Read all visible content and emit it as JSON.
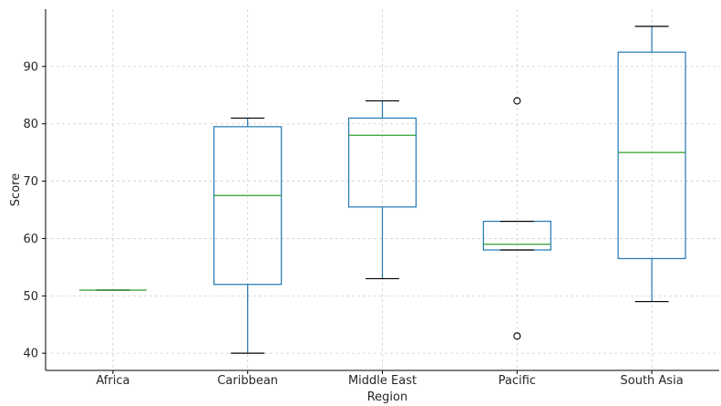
{
  "chart_data": {
    "type": "box",
    "xlabel": "Region",
    "ylabel": "Score",
    "ylim": [
      37,
      100
    ],
    "yticks": [
      40,
      50,
      60,
      70,
      80,
      90
    ],
    "grid": true,
    "colors": {
      "box": "#1f77b4",
      "median": "#2ca02c",
      "whisker": "#1f77b4",
      "cap": "#000000",
      "flier": "#000000"
    },
    "categories": [
      "Africa",
      "Caribbean",
      "Middle East",
      "Pacific",
      "South Asia"
    ],
    "boxes": [
      {
        "category": "Africa",
        "whislo": 51,
        "q1": 51,
        "med": 51,
        "q3": 51,
        "whishi": 51,
        "fliers": []
      },
      {
        "category": "Caribbean",
        "whislo": 40,
        "q1": 52,
        "med": 67.5,
        "q3": 79.5,
        "whishi": 81,
        "fliers": []
      },
      {
        "category": "Middle East",
        "whislo": 53,
        "q1": 65.5,
        "med": 78,
        "q3": 81,
        "whishi": 84,
        "fliers": []
      },
      {
        "category": "Pacific",
        "whislo": 58,
        "q1": 58,
        "med": 59,
        "q3": 63,
        "whishi": 63,
        "fliers": [
          84,
          43
        ]
      },
      {
        "category": "South Asia",
        "whislo": 49,
        "q1": 56.5,
        "med": 75,
        "q3": 92.5,
        "whishi": 97,
        "fliers": []
      }
    ]
  }
}
